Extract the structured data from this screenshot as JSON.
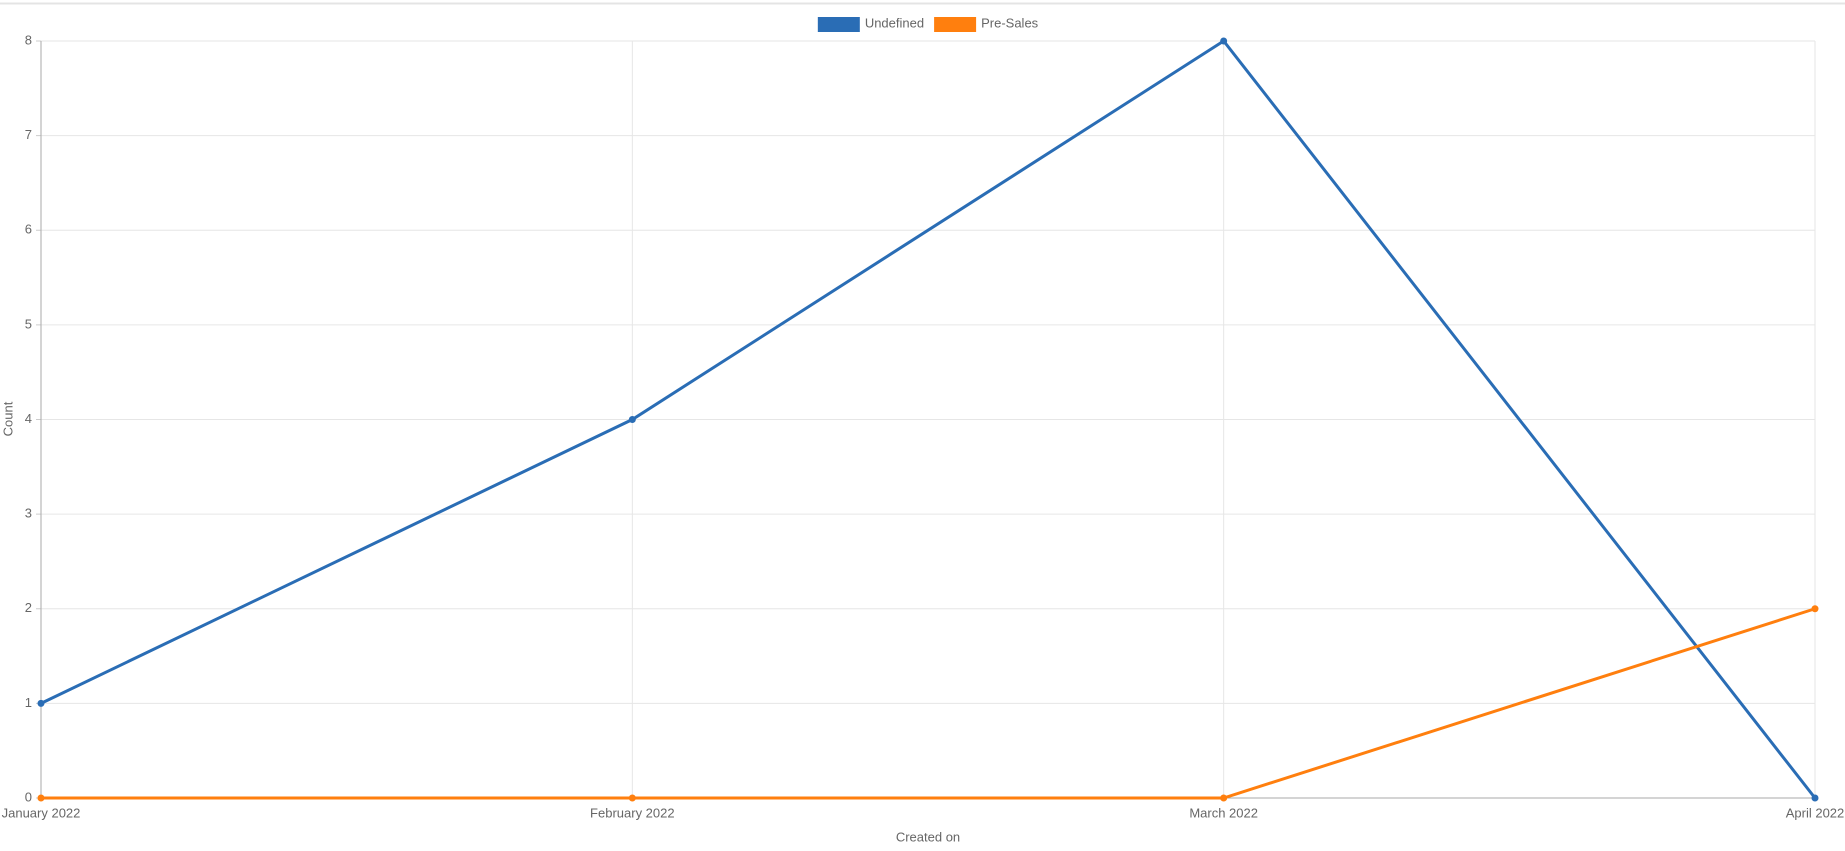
{
  "chart_data": {
    "type": "line",
    "categories": [
      "January 2022",
      "February 2022",
      "March 2022",
      "April 2022"
    ],
    "series": [
      {
        "name": "Undefined",
        "color": "#2a6db5",
        "values": [
          1,
          4,
          8,
          0
        ]
      },
      {
        "name": "Pre-Sales",
        "color": "#ff7f0e",
        "values": [
          0,
          0,
          0,
          2
        ]
      }
    ],
    "ylim": [
      0,
      8
    ],
    "yticks": [
      0,
      1,
      2,
      3,
      4,
      5,
      6,
      7,
      8
    ],
    "xlabel": "Created on",
    "ylabel": "Count",
    "grid": true,
    "legend": "top"
  }
}
